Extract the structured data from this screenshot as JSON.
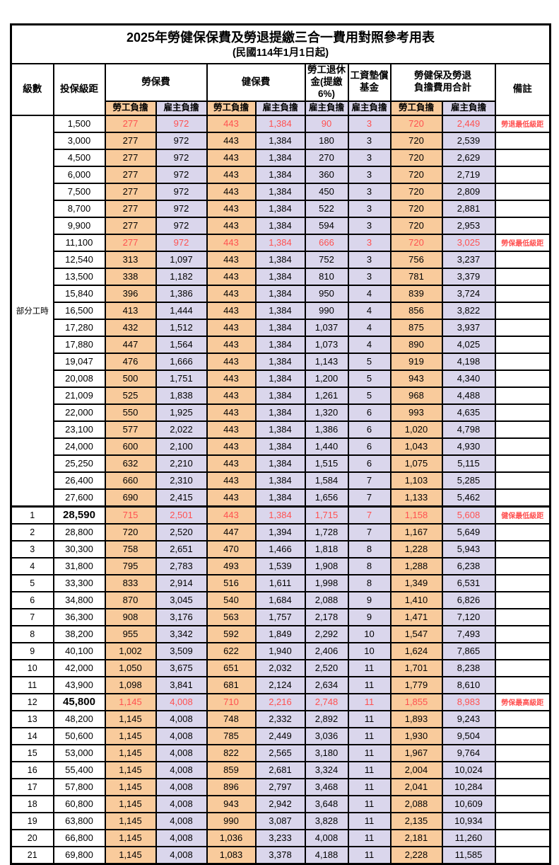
{
  "title": "2025年勞健保保費及勞退提繳三合一費用對照參考用表",
  "subtitle": "(民國114年1月1日起)",
  "colors": {
    "employee_bg": "#F9CB9C",
    "employer_bg": "#DAD6EC",
    "highlight_text": "#FF5151",
    "border": "#000000"
  },
  "header": {
    "level": "級數",
    "bracket": "投保級距",
    "labor_fee": "勞保費",
    "health_fee": "健保費",
    "pension_line1": "勞工退休",
    "pension_line2": "金(提繳6%)",
    "fund_line1": "工資墊償",
    "fund_line2": "基金",
    "total_line1": "勞健保及勞退",
    "total_line2": "負擔費用合計",
    "remark": "備註",
    "employee_label": "勞工負擔",
    "employer_label": "雇主負擔"
  },
  "part_time_label": "部分工時",
  "rows": [
    {
      "level": "",
      "bracket": "1,500",
      "li_emp": "277",
      "li_er": "972",
      "hi_emp": "443",
      "hi_er": "1,384",
      "pension": "90",
      "fund": "3",
      "tot_emp": "720",
      "tot_er": "2,449",
      "remark": "勞退最低級距"
    },
    {
      "level": "",
      "bracket": "3,000",
      "li_emp": "277",
      "li_er": "972",
      "hi_emp": "443",
      "hi_er": "1,384",
      "pension": "180",
      "fund": "3",
      "tot_emp": "720",
      "tot_er": "2,539",
      "remark": ""
    },
    {
      "level": "",
      "bracket": "4,500",
      "li_emp": "277",
      "li_er": "972",
      "hi_emp": "443",
      "hi_er": "1,384",
      "pension": "270",
      "fund": "3",
      "tot_emp": "720",
      "tot_er": "2,629",
      "remark": ""
    },
    {
      "level": "",
      "bracket": "6,000",
      "li_emp": "277",
      "li_er": "972",
      "hi_emp": "443",
      "hi_er": "1,384",
      "pension": "360",
      "fund": "3",
      "tot_emp": "720",
      "tot_er": "2,719",
      "remark": ""
    },
    {
      "level": "",
      "bracket": "7,500",
      "li_emp": "277",
      "li_er": "972",
      "hi_emp": "443",
      "hi_er": "1,384",
      "pension": "450",
      "fund": "3",
      "tot_emp": "720",
      "tot_er": "2,809",
      "remark": ""
    },
    {
      "level": "",
      "bracket": "8,700",
      "li_emp": "277",
      "li_er": "972",
      "hi_emp": "443",
      "hi_er": "1,384",
      "pension": "522",
      "fund": "3",
      "tot_emp": "720",
      "tot_er": "2,881",
      "remark": ""
    },
    {
      "level": "",
      "bracket": "9,900",
      "li_emp": "277",
      "li_er": "972",
      "hi_emp": "443",
      "hi_er": "1,384",
      "pension": "594",
      "fund": "3",
      "tot_emp": "720",
      "tot_er": "2,953",
      "remark": ""
    },
    {
      "level": "",
      "bracket": "11,100",
      "li_emp": "277",
      "li_er": "972",
      "hi_emp": "443",
      "hi_er": "1,384",
      "pension": "666",
      "fund": "3",
      "tot_emp": "720",
      "tot_er": "3,025",
      "remark": "勞保最低級距"
    },
    {
      "level": "",
      "bracket": "12,540",
      "li_emp": "313",
      "li_er": "1,097",
      "hi_emp": "443",
      "hi_er": "1,384",
      "pension": "752",
      "fund": "3",
      "tot_emp": "756",
      "tot_er": "3,237",
      "remark": ""
    },
    {
      "level": "",
      "bracket": "13,500",
      "li_emp": "338",
      "li_er": "1,182",
      "hi_emp": "443",
      "hi_er": "1,384",
      "pension": "810",
      "fund": "3",
      "tot_emp": "781",
      "tot_er": "3,379",
      "remark": ""
    },
    {
      "level": "",
      "bracket": "15,840",
      "li_emp": "396",
      "li_er": "1,386",
      "hi_emp": "443",
      "hi_er": "1,384",
      "pension": "950",
      "fund": "4",
      "tot_emp": "839",
      "tot_er": "3,724",
      "remark": ""
    },
    {
      "level": "",
      "bracket": "16,500",
      "li_emp": "413",
      "li_er": "1,444",
      "hi_emp": "443",
      "hi_er": "1,384",
      "pension": "990",
      "fund": "4",
      "tot_emp": "856",
      "tot_er": "3,822",
      "remark": ""
    },
    {
      "level": "",
      "bracket": "17,280",
      "li_emp": "432",
      "li_er": "1,512",
      "hi_emp": "443",
      "hi_er": "1,384",
      "pension": "1,037",
      "fund": "4",
      "tot_emp": "875",
      "tot_er": "3,937",
      "remark": ""
    },
    {
      "level": "",
      "bracket": "17,880",
      "li_emp": "447",
      "li_er": "1,564",
      "hi_emp": "443",
      "hi_er": "1,384",
      "pension": "1,073",
      "fund": "4",
      "tot_emp": "890",
      "tot_er": "4,025",
      "remark": ""
    },
    {
      "level": "",
      "bracket": "19,047",
      "li_emp": "476",
      "li_er": "1,666",
      "hi_emp": "443",
      "hi_er": "1,384",
      "pension": "1,143",
      "fund": "5",
      "tot_emp": "919",
      "tot_er": "4,198",
      "remark": ""
    },
    {
      "level": "",
      "bracket": "20,008",
      "li_emp": "500",
      "li_er": "1,751",
      "hi_emp": "443",
      "hi_er": "1,384",
      "pension": "1,200",
      "fund": "5",
      "tot_emp": "943",
      "tot_er": "4,340",
      "remark": ""
    },
    {
      "level": "",
      "bracket": "21,009",
      "li_emp": "525",
      "li_er": "1,838",
      "hi_emp": "443",
      "hi_er": "1,384",
      "pension": "1,261",
      "fund": "5",
      "tot_emp": "968",
      "tot_er": "4,488",
      "remark": ""
    },
    {
      "level": "",
      "bracket": "22,000",
      "li_emp": "550",
      "li_er": "1,925",
      "hi_emp": "443",
      "hi_er": "1,384",
      "pension": "1,320",
      "fund": "6",
      "tot_emp": "993",
      "tot_er": "4,635",
      "remark": ""
    },
    {
      "level": "",
      "bracket": "23,100",
      "li_emp": "577",
      "li_er": "2,022",
      "hi_emp": "443",
      "hi_er": "1,384",
      "pension": "1,386",
      "fund": "6",
      "tot_emp": "1,020",
      "tot_er": "4,798",
      "remark": ""
    },
    {
      "level": "",
      "bracket": "24,000",
      "li_emp": "600",
      "li_er": "2,100",
      "hi_emp": "443",
      "hi_er": "1,384",
      "pension": "1,440",
      "fund": "6",
      "tot_emp": "1,043",
      "tot_er": "4,930",
      "remark": ""
    },
    {
      "level": "",
      "bracket": "25,250",
      "li_emp": "632",
      "li_er": "2,210",
      "hi_emp": "443",
      "hi_er": "1,384",
      "pension": "1,515",
      "fund": "6",
      "tot_emp": "1,075",
      "tot_er": "5,115",
      "remark": ""
    },
    {
      "level": "",
      "bracket": "26,400",
      "li_emp": "660",
      "li_er": "2,310",
      "hi_emp": "443",
      "hi_er": "1,384",
      "pension": "1,584",
      "fund": "7",
      "tot_emp": "1,103",
      "tot_er": "5,285",
      "remark": ""
    },
    {
      "level": "",
      "bracket": "27,600",
      "li_emp": "690",
      "li_er": "2,415",
      "hi_emp": "443",
      "hi_er": "1,384",
      "pension": "1,656",
      "fund": "7",
      "tot_emp": "1,133",
      "tot_er": "5,462",
      "remark": ""
    },
    {
      "level": "1",
      "bracket": "28,590",
      "li_emp": "715",
      "li_er": "2,501",
      "hi_emp": "443",
      "hi_er": "1,384",
      "pension": "1,715",
      "fund": "7",
      "tot_emp": "1,158",
      "tot_er": "5,608",
      "remark": "健保最低級距"
    },
    {
      "level": "2",
      "bracket": "28,800",
      "li_emp": "720",
      "li_er": "2,520",
      "hi_emp": "447",
      "hi_er": "1,394",
      "pension": "1,728",
      "fund": "7",
      "tot_emp": "1,167",
      "tot_er": "5,649",
      "remark": ""
    },
    {
      "level": "3",
      "bracket": "30,300",
      "li_emp": "758",
      "li_er": "2,651",
      "hi_emp": "470",
      "hi_er": "1,466",
      "pension": "1,818",
      "fund": "8",
      "tot_emp": "1,228",
      "tot_er": "5,943",
      "remark": ""
    },
    {
      "level": "4",
      "bracket": "31,800",
      "li_emp": "795",
      "li_er": "2,783",
      "hi_emp": "493",
      "hi_er": "1,539",
      "pension": "1,908",
      "fund": "8",
      "tot_emp": "1,288",
      "tot_er": "6,238",
      "remark": ""
    },
    {
      "level": "5",
      "bracket": "33,300",
      "li_emp": "833",
      "li_er": "2,914",
      "hi_emp": "516",
      "hi_er": "1,611",
      "pension": "1,998",
      "fund": "8",
      "tot_emp": "1,349",
      "tot_er": "6,531",
      "remark": ""
    },
    {
      "level": "6",
      "bracket": "34,800",
      "li_emp": "870",
      "li_er": "3,045",
      "hi_emp": "540",
      "hi_er": "1,684",
      "pension": "2,088",
      "fund": "9",
      "tot_emp": "1,410",
      "tot_er": "6,826",
      "remark": ""
    },
    {
      "level": "7",
      "bracket": "36,300",
      "li_emp": "908",
      "li_er": "3,176",
      "hi_emp": "563",
      "hi_er": "1,757",
      "pension": "2,178",
      "fund": "9",
      "tot_emp": "1,471",
      "tot_er": "7,120",
      "remark": ""
    },
    {
      "level": "8",
      "bracket": "38,200",
      "li_emp": "955",
      "li_er": "3,342",
      "hi_emp": "592",
      "hi_er": "1,849",
      "pension": "2,292",
      "fund": "10",
      "tot_emp": "1,547",
      "tot_er": "7,493",
      "remark": ""
    },
    {
      "level": "9",
      "bracket": "40,100",
      "li_emp": "1,002",
      "li_er": "3,509",
      "hi_emp": "622",
      "hi_er": "1,940",
      "pension": "2,406",
      "fund": "10",
      "tot_emp": "1,624",
      "tot_er": "7,865",
      "remark": ""
    },
    {
      "level": "10",
      "bracket": "42,000",
      "li_emp": "1,050",
      "li_er": "3,675",
      "hi_emp": "651",
      "hi_er": "2,032",
      "pension": "2,520",
      "fund": "11",
      "tot_emp": "1,701",
      "tot_er": "8,238",
      "remark": ""
    },
    {
      "level": "11",
      "bracket": "43,900",
      "li_emp": "1,098",
      "li_er": "3,841",
      "hi_emp": "681",
      "hi_er": "2,124",
      "pension": "2,634",
      "fund": "11",
      "tot_emp": "1,779",
      "tot_er": "8,610",
      "remark": ""
    },
    {
      "level": "12",
      "bracket": "45,800",
      "li_emp": "1,145",
      "li_er": "4,008",
      "hi_emp": "710",
      "hi_er": "2,216",
      "pension": "2,748",
      "fund": "11",
      "tot_emp": "1,855",
      "tot_er": "8,983",
      "remark": "勞保最高級距"
    },
    {
      "level": "13",
      "bracket": "48,200",
      "li_emp": "1,145",
      "li_er": "4,008",
      "hi_emp": "748",
      "hi_er": "2,332",
      "pension": "2,892",
      "fund": "11",
      "tot_emp": "1,893",
      "tot_er": "9,243",
      "remark": ""
    },
    {
      "level": "14",
      "bracket": "50,600",
      "li_emp": "1,145",
      "li_er": "4,008",
      "hi_emp": "785",
      "hi_er": "2,449",
      "pension": "3,036",
      "fund": "11",
      "tot_emp": "1,930",
      "tot_er": "9,504",
      "remark": ""
    },
    {
      "level": "15",
      "bracket": "53,000",
      "li_emp": "1,145",
      "li_er": "4,008",
      "hi_emp": "822",
      "hi_er": "2,565",
      "pension": "3,180",
      "fund": "11",
      "tot_emp": "1,967",
      "tot_er": "9,764",
      "remark": ""
    },
    {
      "level": "16",
      "bracket": "55,400",
      "li_emp": "1,145",
      "li_er": "4,008",
      "hi_emp": "859",
      "hi_er": "2,681",
      "pension": "3,324",
      "fund": "11",
      "tot_emp": "2,004",
      "tot_er": "10,024",
      "remark": ""
    },
    {
      "level": "17",
      "bracket": "57,800",
      "li_emp": "1,145",
      "li_er": "4,008",
      "hi_emp": "896",
      "hi_er": "2,797",
      "pension": "3,468",
      "fund": "11",
      "tot_emp": "2,041",
      "tot_er": "10,284",
      "remark": ""
    },
    {
      "level": "18",
      "bracket": "60,800",
      "li_emp": "1,145",
      "li_er": "4,008",
      "hi_emp": "943",
      "hi_er": "2,942",
      "pension": "3,648",
      "fund": "11",
      "tot_emp": "2,088",
      "tot_er": "10,609",
      "remark": ""
    },
    {
      "level": "19",
      "bracket": "63,800",
      "li_emp": "1,145",
      "li_er": "4,008",
      "hi_emp": "990",
      "hi_er": "3,087",
      "pension": "3,828",
      "fund": "11",
      "tot_emp": "2,135",
      "tot_er": "10,934",
      "remark": ""
    },
    {
      "level": "20",
      "bracket": "66,800",
      "li_emp": "1,145",
      "li_er": "4,008",
      "hi_emp": "1,036",
      "hi_er": "3,233",
      "pension": "4,008",
      "fund": "11",
      "tot_emp": "2,181",
      "tot_er": "11,260",
      "remark": ""
    },
    {
      "level": "21",
      "bracket": "69,800",
      "li_emp": "1,145",
      "li_er": "4,008",
      "hi_emp": "1,083",
      "hi_er": "3,378",
      "pension": "4,188",
      "fund": "11",
      "tot_emp": "2,228",
      "tot_er": "11,585",
      "remark": ""
    }
  ]
}
